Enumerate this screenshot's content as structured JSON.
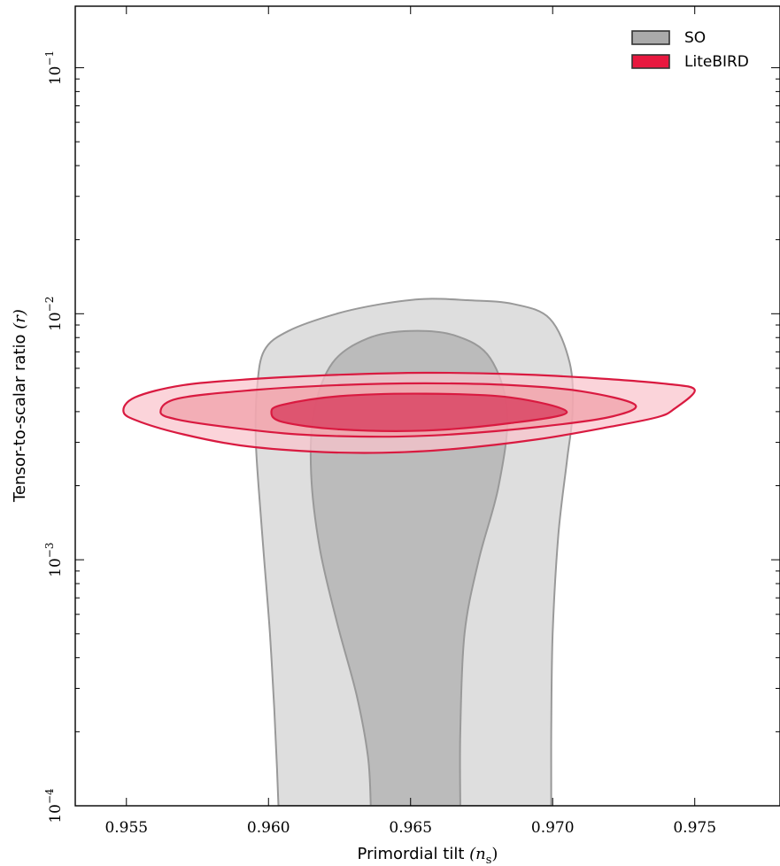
{
  "chart_data": {
    "type": "contour",
    "xlabel": {
      "text": "Primordial tilt ",
      "symbol": "(n",
      "sub": "s",
      "close": ")"
    },
    "ylabel": {
      "text": "Tensor-to-scalar ratio ",
      "symbol": "(r)"
    },
    "xlim": [
      0.9532,
      0.978
    ],
    "ylim_log10": [
      -4,
      -0.75
    ],
    "y_scale": "log",
    "grid": false,
    "legend_position": "top-right",
    "x_ticks": [
      {
        "value": 0.955,
        "label": "0.955"
      },
      {
        "value": 0.96,
        "label": "0.960"
      },
      {
        "value": 0.965,
        "label": "0.965"
      },
      {
        "value": 0.97,
        "label": "0.970"
      },
      {
        "value": 0.975,
        "label": "0.975"
      }
    ],
    "y_ticks": [
      {
        "exp": -4,
        "base": "10",
        "sup": "−4"
      },
      {
        "exp": -3,
        "base": "10",
        "sup": "−3"
      },
      {
        "exp": -2,
        "base": "10",
        "sup": "−2"
      },
      {
        "exp": -1,
        "base": "10",
        "sup": "−1"
      }
    ],
    "series": [
      {
        "name": "SO",
        "fill_outer": "#dedede",
        "fill_inner": "#bbbbbb",
        "edge": "#999999",
        "legend_fill": "#aaaaaa",
        "legend_edge": "#333333",
        "contours": [
          {
            "level": "95%",
            "points": [
              [
                0.96035,
                -4.0
              ],
              [
                0.9603,
                -3.85
              ],
              [
                0.9602,
                -3.6
              ],
              [
                0.96005,
                -3.3
              ],
              [
                0.95985,
                -3.0
              ],
              [
                0.95965,
                -2.7
              ],
              [
                0.95955,
                -2.5
              ],
              [
                0.9596,
                -2.3
              ],
              [
                0.95985,
                -2.15
              ],
              [
                0.9607,
                -2.07
              ],
              [
                0.9624,
                -2.0
              ],
              [
                0.964,
                -1.96
              ],
              [
                0.9655,
                -1.94
              ],
              [
                0.967,
                -1.945
              ],
              [
                0.9686,
                -1.96
              ],
              [
                0.9699,
                -2.02
              ],
              [
                0.9706,
                -2.2
              ],
              [
                0.9707,
                -2.4
              ],
              [
                0.9705,
                -2.6
              ],
              [
                0.9702,
                -2.9
              ],
              [
                0.97,
                -3.3
              ],
              [
                0.96995,
                -3.7
              ],
              [
                0.96995,
                -4.0
              ]
            ]
          },
          {
            "level": "68%",
            "points": [
              [
                0.9636,
                -4.0
              ],
              [
                0.9635,
                -3.8
              ],
              [
                0.9631,
                -3.55
              ],
              [
                0.9624,
                -3.25
              ],
              [
                0.9618,
                -2.95
              ],
              [
                0.9615,
                -2.65
              ],
              [
                0.9616,
                -2.4
              ],
              [
                0.96225,
                -2.2
              ],
              [
                0.9635,
                -2.1
              ],
              [
                0.965,
                -2.07
              ],
              [
                0.9666,
                -2.09
              ],
              [
                0.9678,
                -2.18
              ],
              [
                0.9684,
                -2.4
              ],
              [
                0.9681,
                -2.7
              ],
              [
                0.9674,
                -3.0
              ],
              [
                0.9669,
                -3.3
              ],
              [
                0.96675,
                -3.7
              ],
              [
                0.96675,
                -4.0
              ]
            ]
          }
        ]
      },
      {
        "name": "LiteBIRD",
        "fill_outer": "#f9c4cc",
        "fill_mid": "#f0a0a8",
        "fill_inner": "#d94262",
        "edge": "#d91a40",
        "legend_fill": "#e8183f",
        "legend_edge": "#333333",
        "contours": [
          {
            "level": "outer",
            "points": [
              [
                0.9549,
                -2.4
              ],
              [
                0.9553,
                -2.34
              ],
              [
                0.957,
                -2.29
              ],
              [
                0.9595,
                -2.265
              ],
              [
                0.9625,
                -2.248
              ],
              [
                0.9655,
                -2.24
              ],
              [
                0.9685,
                -2.245
              ],
              [
                0.9715,
                -2.262
              ],
              [
                0.974,
                -2.285
              ],
              [
                0.975,
                -2.31
              ],
              [
                0.9743,
                -2.385
              ],
              [
                0.9737,
                -2.42
              ],
              [
                0.972,
                -2.46
              ],
              [
                0.9695,
                -2.51
              ],
              [
                0.9665,
                -2.55
              ],
              [
                0.964,
                -2.565
              ],
              [
                0.9615,
                -2.56
              ],
              [
                0.959,
                -2.535
              ],
              [
                0.957,
                -2.49
              ],
              [
                0.9555,
                -2.44
              ]
            ]
          },
          {
            "level": "mid",
            "points": [
              [
                0.9562,
                -2.4
              ],
              [
                0.9568,
                -2.345
              ],
              [
                0.9595,
                -2.31
              ],
              [
                0.9625,
                -2.29
              ],
              [
                0.9655,
                -2.283
              ],
              [
                0.9685,
                -2.29
              ],
              [
                0.971,
                -2.315
              ],
              [
                0.9729,
                -2.37
              ],
              [
                0.972,
                -2.42
              ],
              [
                0.9695,
                -2.46
              ],
              [
                0.9665,
                -2.49
              ],
              [
                0.964,
                -2.5
              ],
              [
                0.961,
                -2.49
              ],
              [
                0.9585,
                -2.46
              ],
              [
                0.9568,
                -2.43
              ]
            ]
          },
          {
            "level": "inner",
            "points": [
              [
                0.9601,
                -2.4
              ],
              [
                0.9605,
                -2.37
              ],
              [
                0.9625,
                -2.335
              ],
              [
                0.9655,
                -2.325
              ],
              [
                0.9685,
                -2.34
              ],
              [
                0.9705,
                -2.4
              ],
              [
                0.9685,
                -2.445
              ],
              [
                0.9655,
                -2.475
              ],
              [
                0.9625,
                -2.47
              ],
              [
                0.9605,
                -2.44
              ]
            ]
          }
        ]
      }
    ]
  }
}
